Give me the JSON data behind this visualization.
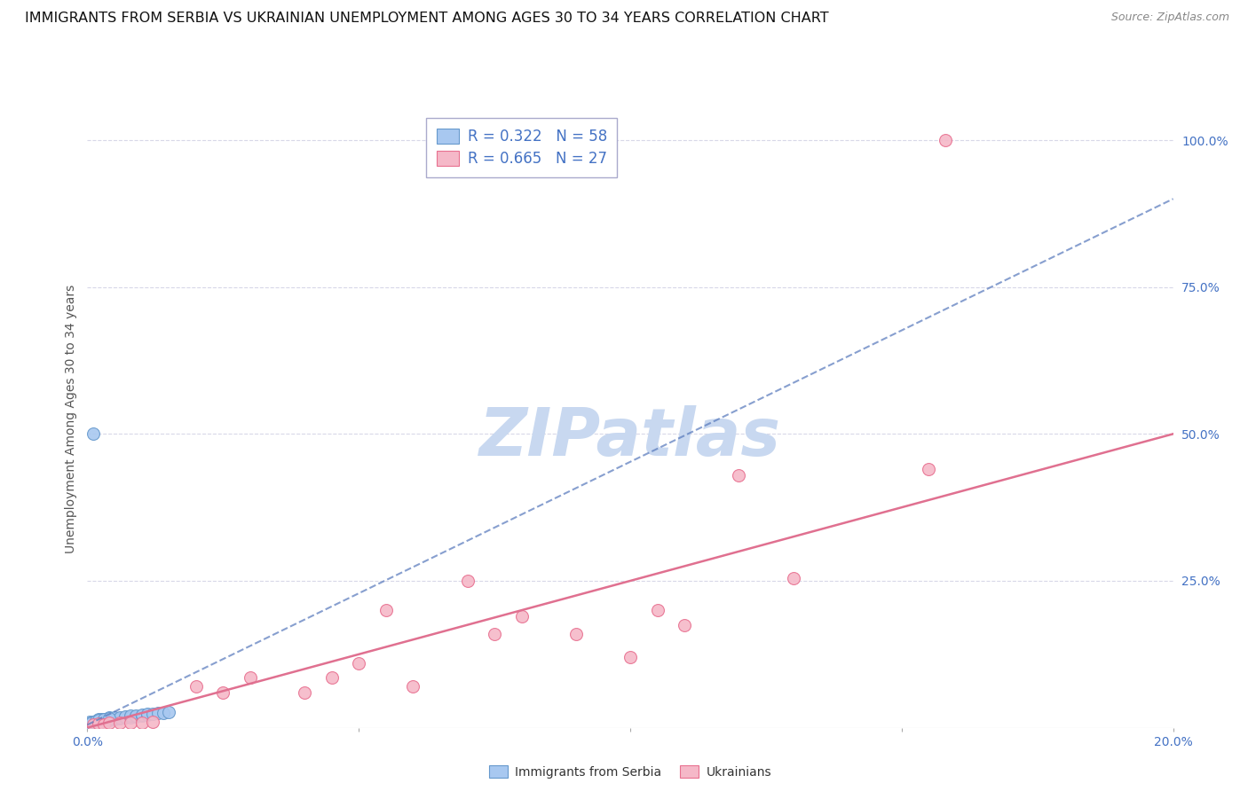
{
  "title": "IMMIGRANTS FROM SERBIA VS UKRAINIAN UNEMPLOYMENT AMONG AGES 30 TO 34 YEARS CORRELATION CHART",
  "source": "Source: ZipAtlas.com",
  "ylabel": "Unemployment Among Ages 30 to 34 years",
  "x_min": 0.0,
  "x_max": 0.2,
  "y_min": 0.0,
  "y_max": 1.05,
  "right_yticks": [
    0.25,
    0.5,
    0.75,
    1.0
  ],
  "right_yticklabels": [
    "25.0%",
    "50.0%",
    "75.0%",
    "100.0%"
  ],
  "serbia_color": "#a8c8f0",
  "serbia_edge_color": "#6699cc",
  "ukraine_color": "#f5b8c8",
  "ukraine_edge_color": "#e87090",
  "serbia_line_color": "#5577bb",
  "ukraine_line_color": "#e07090",
  "serbia_R": 0.322,
  "serbia_N": 58,
  "ukraine_R": 0.665,
  "ukraine_N": 27,
  "watermark": "ZIPatlas",
  "watermark_color": "#c8d8f0",
  "serbia_scatter_x": [
    0.0002,
    0.0003,
    0.0004,
    0.0005,
    0.0006,
    0.0007,
    0.0008,
    0.0009,
    0.001,
    0.001,
    0.0012,
    0.0013,
    0.0014,
    0.0015,
    0.0016,
    0.0017,
    0.0018,
    0.002,
    0.002,
    0.002,
    0.0022,
    0.0023,
    0.0024,
    0.0025,
    0.003,
    0.003,
    0.003,
    0.003,
    0.004,
    0.004,
    0.004,
    0.005,
    0.005,
    0.005,
    0.006,
    0.006,
    0.007,
    0.007,
    0.008,
    0.008,
    0.009,
    0.009,
    0.01,
    0.01,
    0.011,
    0.011,
    0.012,
    0.013,
    0.014,
    0.015,
    0.0003,
    0.0005,
    0.0008,
    0.001,
    0.0015,
    0.002,
    0.003,
    0.004
  ],
  "serbia_scatter_y": [
    0.005,
    0.008,
    0.005,
    0.01,
    0.007,
    0.008,
    0.006,
    0.009,
    0.008,
    0.01,
    0.009,
    0.01,
    0.008,
    0.009,
    0.01,
    0.012,
    0.011,
    0.01,
    0.012,
    0.014,
    0.011,
    0.013,
    0.012,
    0.015,
    0.012,
    0.014,
    0.015,
    0.013,
    0.013,
    0.015,
    0.017,
    0.015,
    0.016,
    0.018,
    0.016,
    0.018,
    0.017,
    0.019,
    0.018,
    0.02,
    0.019,
    0.021,
    0.02,
    0.022,
    0.022,
    0.023,
    0.024,
    0.025,
    0.025,
    0.026,
    0.005,
    0.007,
    0.009,
    0.5,
    0.011,
    0.013,
    0.014,
    0.016
  ],
  "ukraine_scatter_x": [
    0.001,
    0.002,
    0.003,
    0.004,
    0.006,
    0.008,
    0.01,
    0.012,
    0.02,
    0.025,
    0.03,
    0.04,
    0.045,
    0.05,
    0.055,
    0.06,
    0.07,
    0.075,
    0.08,
    0.09,
    0.1,
    0.105,
    0.11,
    0.12,
    0.13,
    0.155,
    0.158
  ],
  "ukraine_scatter_y": [
    0.005,
    0.007,
    0.006,
    0.008,
    0.008,
    0.009,
    0.008,
    0.01,
    0.07,
    0.06,
    0.085,
    0.06,
    0.085,
    0.11,
    0.2,
    0.07,
    0.25,
    0.16,
    0.19,
    0.16,
    0.12,
    0.2,
    0.175,
    0.43,
    0.255,
    0.44,
    1.0
  ],
  "serbia_trend_x": [
    0.0,
    0.2
  ],
  "serbia_trend_y": [
    0.005,
    0.9
  ],
  "ukraine_trend_x": [
    0.0,
    0.2
  ],
  "ukraine_trend_y": [
    0.0,
    0.5
  ],
  "background_color": "#ffffff",
  "grid_color": "#d8d8e8",
  "title_fontsize": 11.5,
  "axis_label_fontsize": 10,
  "tick_fontsize": 10,
  "legend_fontsize": 12,
  "source_fontsize": 9
}
